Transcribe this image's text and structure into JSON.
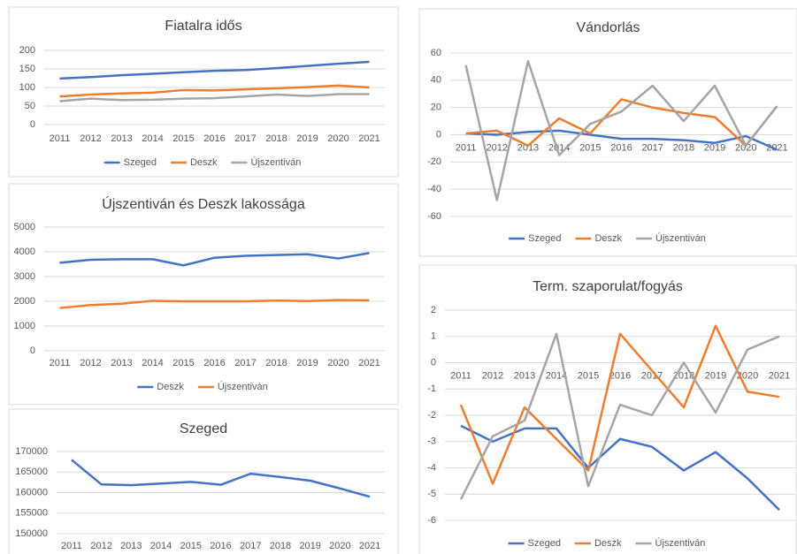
{
  "chart_data": [
    {
      "type": "line",
      "title": "Fiatalra idős",
      "categories": [
        "2011",
        "2012",
        "2013",
        "2014",
        "2015",
        "2016",
        "2017",
        "2018",
        "2019",
        "2020",
        "2021"
      ],
      "series": [
        {
          "name": "Szeged",
          "color": "#4472c4",
          "values": [
            124,
            128,
            133,
            137,
            141,
            145,
            147,
            152,
            158,
            164,
            169
          ]
        },
        {
          "name": "Deszk",
          "color": "#ed7d31",
          "values": [
            76,
            81,
            84,
            86,
            93,
            92,
            95,
            98,
            101,
            105,
            100
          ]
        },
        {
          "name": "Újszentiván",
          "color": "#a5a5a5",
          "values": [
            63,
            70,
            66,
            67,
            70,
            71,
            76,
            81,
            77,
            82,
            82
          ]
        }
      ],
      "ylim": [
        0,
        200
      ],
      "yticks": [
        0,
        50,
        100,
        150,
        200
      ],
      "grid": true,
      "legend": "bottom"
    },
    {
      "type": "line",
      "title": "Újszentiván és Deszk lakossága",
      "categories": [
        "2011",
        "2012",
        "2013",
        "2014",
        "2015",
        "2016",
        "2017",
        "2018",
        "2019",
        "2020",
        "2021"
      ],
      "series": [
        {
          "name": "Deszk",
          "color": "#4472c4",
          "values": [
            3560,
            3680,
            3700,
            3700,
            3450,
            3760,
            3840,
            3870,
            3900,
            3730,
            3950
          ]
        },
        {
          "name": "Újszentiván",
          "color": "#ed7d31",
          "values": [
            1730,
            1850,
            1900,
            2020,
            2000,
            2000,
            2000,
            2030,
            2010,
            2050,
            2040
          ]
        }
      ],
      "ylim": [
        0,
        5000
      ],
      "yticks": [
        0,
        1000,
        2000,
        3000,
        4000,
        5000
      ],
      "grid": true,
      "legend": "bottom"
    },
    {
      "type": "line",
      "title": "Szeged",
      "categories": [
        "2011",
        "2012",
        "2013",
        "2014",
        "2015",
        "2016",
        "2017",
        "2018",
        "2019",
        "2020",
        "2021"
      ],
      "values": [
        168000,
        162000,
        161800,
        162200,
        162600,
        161900,
        164600,
        163800,
        162900,
        161000,
        159000
      ],
      "color": "#4472c4",
      "ylim": [
        150000,
        170000
      ],
      "yticks": [
        150000,
        155000,
        160000,
        165000,
        170000
      ],
      "grid": true
    },
    {
      "type": "line",
      "title": "Vándorlás",
      "categories": [
        "2011",
        "2012",
        "2013",
        "2014",
        "2015",
        "2016",
        "2017",
        "2018",
        "2019",
        "2020",
        "2021"
      ],
      "series": [
        {
          "name": "Szeged",
          "color": "#4472c4",
          "values": [
            1,
            0,
            2,
            3,
            0,
            -3,
            -3,
            -4,
            -6,
            -1,
            -11
          ]
        },
        {
          "name": "Deszk",
          "color": "#ed7d31",
          "values": [
            1,
            3,
            -8,
            12,
            1,
            26,
            20,
            16,
            13,
            -8,
            21
          ]
        },
        {
          "name": "Újszentiván",
          "color": "#a5a5a5",
          "values": [
            51,
            -48,
            54,
            -15,
            8,
            17,
            36,
            10,
            36,
            -8,
            21
          ]
        }
      ],
      "ylim": [
        -60,
        60
      ],
      "yticks": [
        -60,
        -40,
        -20,
        0,
        20,
        40,
        60
      ],
      "grid": true,
      "legend": "bottom"
    },
    {
      "type": "line",
      "title": "Term. szaporulat/fogyás",
      "categories": [
        "2011",
        "2012",
        "2013",
        "2014",
        "2015",
        "2016",
        "2017",
        "2018",
        "2019",
        "2020",
        "2021"
      ],
      "series": [
        {
          "name": "Szeged",
          "color": "#4472c4",
          "values": [
            -2.4,
            -3,
            -2.5,
            -2.5,
            -4,
            -2.9,
            -3.2,
            -4.1,
            -3.4,
            -4.4,
            -5.6
          ]
        },
        {
          "name": "Deszk",
          "color": "#ed7d31",
          "values": [
            -1.6,
            -4.6,
            -1.7,
            -2.9,
            -4.1,
            1.1,
            -0.3,
            -1.7,
            1.4,
            -1.1,
            -1.3
          ]
        },
        {
          "name": "Újszentiván",
          "color": "#a5a5a5",
          "values": [
            -5.2,
            -2.8,
            -2.2,
            1.1,
            -4.7,
            -1.6,
            -2,
            0,
            -1.9,
            0.5,
            1
          ]
        }
      ],
      "ylim": [
        -6,
        2
      ],
      "yticks": [
        -6,
        -5,
        -4,
        -3,
        -2,
        -1,
        0,
        1,
        2
      ],
      "grid": true,
      "legend": "bottom"
    }
  ]
}
